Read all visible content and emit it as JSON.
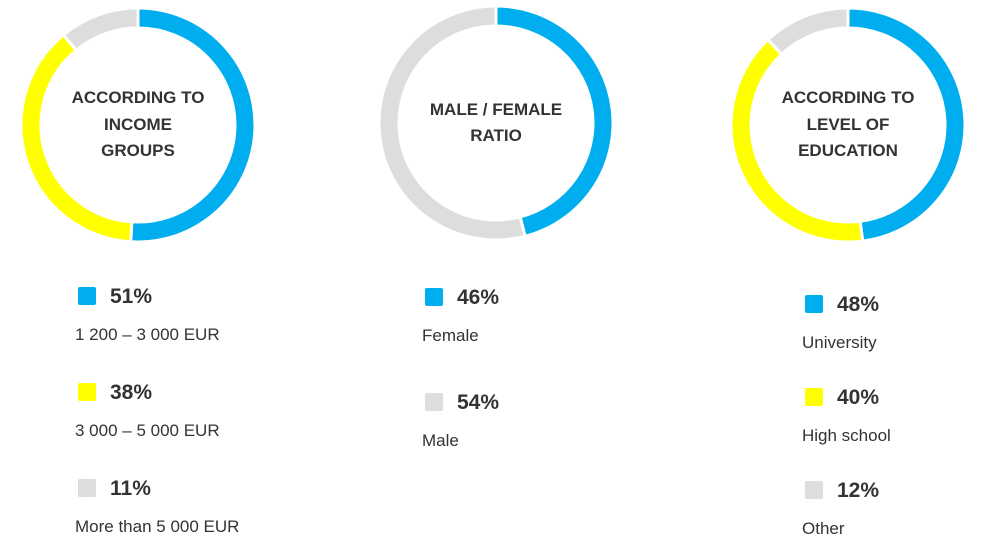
{
  "chart_data": [
    {
      "type": "donut",
      "title": "ACCORDING TO INCOME GROUPS",
      "categories": [
        "1 200 – 3 000 EUR",
        "3 000 – 5 000 EUR",
        "More than 5 000 EUR"
      ],
      "values": [
        51,
        38,
        11
      ],
      "value_labels": [
        "51%",
        "38%",
        "11%"
      ],
      "colors": [
        "#00aeef",
        "#ffff00",
        "#dddddd"
      ]
    },
    {
      "type": "donut",
      "title": "MALE / FEMALE RATIO",
      "categories": [
        "Female",
        "Male"
      ],
      "values": [
        46,
        54
      ],
      "value_labels": [
        "46%",
        "54%"
      ],
      "colors": [
        "#00aeef",
        "#dddddd"
      ]
    },
    {
      "type": "donut",
      "title": "ACCORDING TO LEVEL OF EDUCATION",
      "categories": [
        "University",
        "High school",
        "Other"
      ],
      "values": [
        48,
        40,
        12
      ],
      "value_labels": [
        "48%",
        "40%",
        "12%"
      ],
      "colors": [
        "#00aeef",
        "#ffff00",
        "#dddddd"
      ]
    }
  ]
}
